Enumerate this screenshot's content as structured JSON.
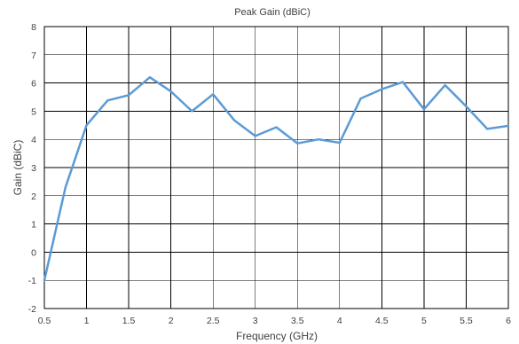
{
  "chart_data": {
    "type": "line",
    "title": "Peak Gain (dBiC)",
    "xlabel": "Frequency (GHz)",
    "ylabel": "Gain (dBiC)",
    "xlim": [
      0.5,
      6
    ],
    "ylim": [
      -2,
      8
    ],
    "x_ticks": [
      "0.5",
      "1",
      "1.5",
      "2",
      "2.5",
      "3",
      "3.5",
      "4",
      "4.5",
      "5",
      "5.5",
      "6"
    ],
    "y_ticks": [
      "-2",
      "-1",
      "0",
      "1",
      "2",
      "3",
      "4",
      "5",
      "6",
      "7",
      "8"
    ],
    "grid": true,
    "legend": "none",
    "line_color": "#5b9bd5",
    "series": [
      {
        "x": [
          0.5,
          0.75,
          1.0,
          1.25,
          1.5,
          1.75,
          2.0,
          2.25,
          2.5,
          2.75,
          3.0,
          3.25,
          3.5,
          3.75,
          4.0,
          4.25,
          4.5,
          4.75,
          5.0,
          5.25,
          5.5,
          5.75,
          6.0
        ],
        "y": [
          -1.0,
          2.3,
          4.5,
          5.38,
          5.57,
          6.2,
          5.7,
          5.0,
          5.6,
          4.68,
          4.12,
          4.43,
          3.86,
          4.0,
          3.88,
          5.45,
          5.78,
          6.03,
          5.07,
          5.92,
          5.17,
          4.37,
          4.48
        ]
      }
    ]
  }
}
